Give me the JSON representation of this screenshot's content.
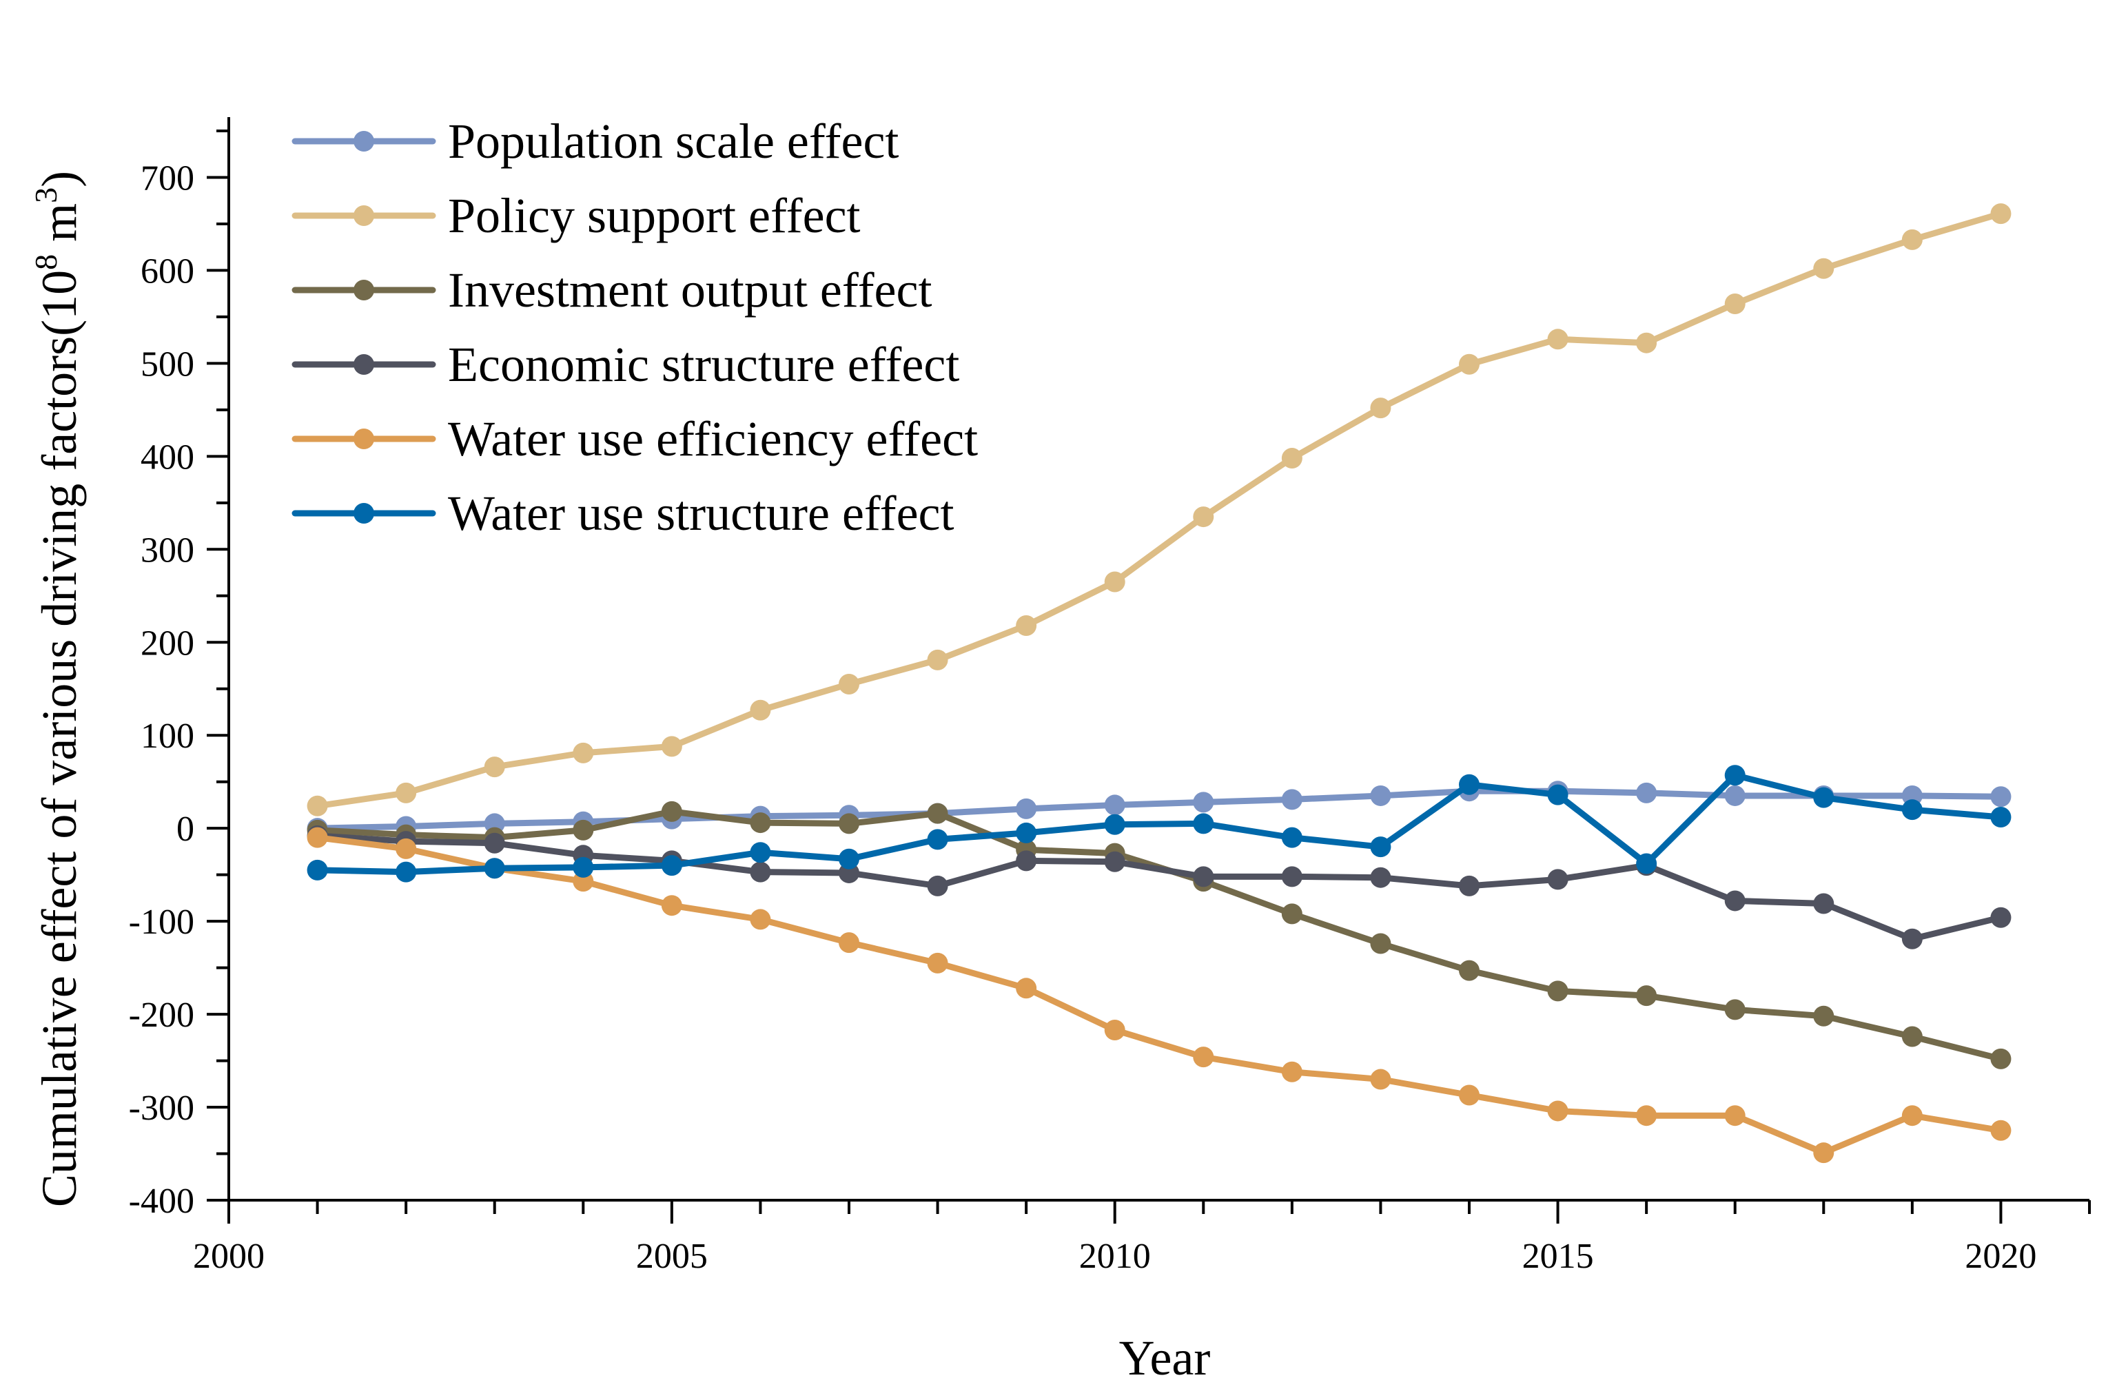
{
  "chart_data": {
    "type": "line",
    "title": "",
    "xlabel": "Year",
    "ylabel": "Cumulative effect of various driving factors(10",
    "ylabel_sup1": "8",
    "ylabel_mid": " m",
    "ylabel_sup2": "3",
    "ylabel_end": ")",
    "xlim": [
      2000,
      2021
    ],
    "ylim": [
      -400,
      750
    ],
    "xticks": [
      2000,
      2005,
      2010,
      2015,
      2020
    ],
    "xtick_labels": [
      "2000",
      "2005",
      "2010",
      "2015",
      "2020"
    ],
    "yticks": [
      -400,
      -300,
      -200,
      -100,
      0,
      100,
      200,
      300,
      400,
      500,
      600,
      700
    ],
    "ytick_labels": [
      "-400",
      "-300",
      "-200",
      "-100",
      "0",
      "100",
      "200",
      "300",
      "400",
      "500",
      "600",
      "700"
    ],
    "grid": false,
    "legend_position": "top-left",
    "x": [
      2001,
      2002,
      2003,
      2004,
      2005,
      2006,
      2007,
      2008,
      2009,
      2010,
      2011,
      2012,
      2013,
      2014,
      2015,
      2016,
      2017,
      2018,
      2019,
      2020
    ],
    "series": [
      {
        "name": "Population scale effect",
        "color": "#7a93c4",
        "values": [
          0,
          2,
          5,
          7,
          10,
          13,
          14,
          16,
          21,
          25,
          28,
          31,
          35,
          40,
          40,
          38,
          35,
          35,
          35,
          34
        ]
      },
      {
        "name": "Policy support effect",
        "color": "#ddbd86",
        "values": [
          24,
          38,
          66,
          81,
          88,
          127,
          155,
          181,
          218,
          265,
          335,
          398,
          452,
          499,
          526,
          522,
          564,
          602,
          633,
          661
        ]
      },
      {
        "name": "Investment output effect",
        "color": "#736a4b",
        "values": [
          -2,
          -7,
          -10,
          -2,
          18,
          6,
          5,
          16,
          -23,
          -27,
          -57,
          -92,
          -124,
          -153,
          -175,
          -180,
          -195,
          -202,
          -224,
          -248
        ]
      },
      {
        "name": "Economic structure effect",
        "color": "#50525f",
        "values": [
          -8,
          -14,
          -16,
          -29,
          -35,
          -47,
          -48,
          -62,
          -35,
          -36,
          -52,
          -52,
          -53,
          -62,
          -55,
          -40,
          -78,
          -81,
          -119,
          -96
        ]
      },
      {
        "name": "Water use efficiency effect",
        "color": "#dd9c52",
        "values": [
          -10,
          -22,
          -43,
          -57,
          -83,
          -98,
          -123,
          -145,
          -172,
          -217,
          -246,
          -262,
          -270,
          -287,
          -304,
          -309,
          -309,
          -349,
          -309,
          -325
        ]
      },
      {
        "name": "Water use structure effect",
        "color": "#0068aa",
        "values": [
          -45,
          -47,
          -43,
          -42,
          -40,
          -26,
          -33,
          -12,
          -5,
          4,
          5,
          -10,
          -20,
          47,
          36,
          -38,
          57,
          33,
          20,
          12
        ]
      }
    ]
  }
}
